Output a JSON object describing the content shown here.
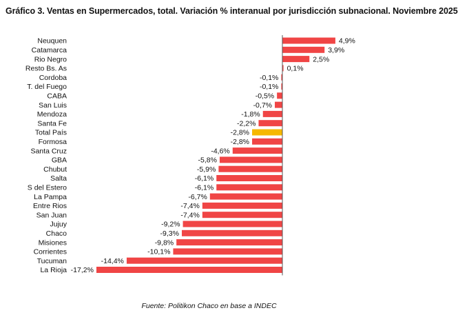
{
  "title": "Gráfico 3. Ventas en Supermercados, total. Variación % interanual por jurisdicción subnacional. Noviembre 2025",
  "source": "Fuente: Politikon Chaco en base a INDEC",
  "colors": {
    "bar": "#f04545",
    "highlight": "#f6b800",
    "axis": "#555555"
  },
  "chart_data": {
    "type": "bar",
    "orientation": "horizontal",
    "title": "Gráfico 3. Ventas en Supermercados, total. Variación % interanual por jurisdicción subnacional. Noviembre 2025",
    "xlabel": "",
    "ylabel": "",
    "xlim": [
      -17.2,
      4.9
    ],
    "grid": false,
    "highlight": "Total País",
    "categories": [
      "Neuquen",
      "Catamarca",
      "Rio Negro",
      "Resto Bs. As",
      "Cordoba",
      "T. del Fuego",
      "CABA",
      "San Luis",
      "Mendoza",
      "Santa Fe",
      "Total País",
      "Formosa",
      "Santa Cruz",
      "GBA",
      "Chubut",
      "Salta",
      "S del Estero",
      "La Pampa",
      "Entre Rios",
      "San Juan",
      "Jujuy",
      "Chaco",
      "Misiones",
      "Corrientes",
      "Tucuman",
      "La Rioja"
    ],
    "values": [
      4.9,
      3.9,
      2.5,
      0.1,
      -0.1,
      -0.1,
      -0.5,
      -0.7,
      -1.8,
      -2.2,
      -2.8,
      -2.8,
      -4.6,
      -5.8,
      -5.9,
      -6.1,
      -6.1,
      -6.7,
      -7.4,
      -7.4,
      -9.2,
      -9.3,
      -9.8,
      -10.1,
      -14.4,
      -17.2
    ],
    "value_labels": [
      "4,9%",
      "3,9%",
      "2,5%",
      "0,1%",
      "-0,1%",
      "-0,1%",
      "-0,5%",
      "-0,7%",
      "-1,8%",
      "-2,2%",
      "-2,8%",
      "-2,8%",
      "-4,6%",
      "-5,8%",
      "-5,9%",
      "-6,1%",
      "-6,1%",
      "-6,7%",
      "-7,4%",
      "-7,4%",
      "-9,2%",
      "-9,3%",
      "-9,8%",
      "-10,1%",
      "-14,4%",
      "-17,2%"
    ]
  }
}
